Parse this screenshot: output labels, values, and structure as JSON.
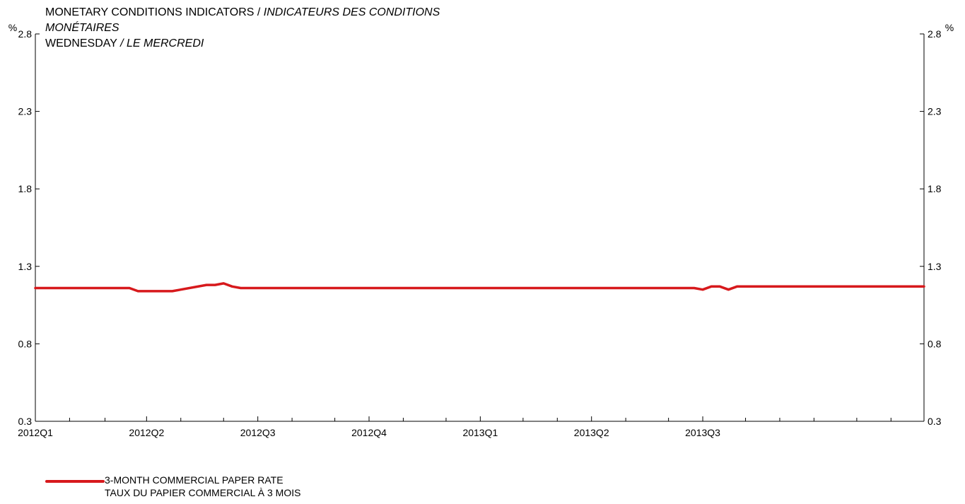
{
  "header": {
    "title_en": "MONETARY CONDITIONS INDICATORS / ",
    "title_fr": "INDICATEURS DES CONDITIONS",
    "title_fr_cont": "MONÉTAIRES",
    "subtitle_en": "WEDNESDAY ",
    "subtitle_fr": "/ LE MERCREDI"
  },
  "legend": {
    "label_en": "3-MONTH COMMERCIAL PAPER RATE",
    "label_fr": "TAUX DU PAPIER COMMERCIAL À 3 MOIS"
  },
  "colors": {
    "series": "#d7191c",
    "axis": "#000000"
  },
  "chart_data": {
    "type": "line",
    "title": "MONETARY CONDITIONS INDICATORS / INDICATEURS DES CONDITIONS MONÉTAIRES",
    "subtitle": "WEDNESDAY / LE MERCREDI",
    "xlabel": "",
    "ylabel": "%",
    "y2label": "%",
    "ylim": [
      0.3,
      2.8
    ],
    "yticks": [
      0.3,
      0.8,
      1.3,
      1.8,
      2.3,
      2.8
    ],
    "ytick_labels": [
      "0.3",
      "0.8",
      "1.3",
      "1.8",
      "2.3",
      "2.8"
    ],
    "xlim": [
      "2012-01-04",
      "2013-12-31"
    ],
    "x_labels": [
      {
        "date": "2012-01-04",
        "label": "2012Q1"
      },
      {
        "date": "2012-04-04",
        "label": "2012Q2"
      },
      {
        "date": "2012-07-04",
        "label": "2012Q3"
      },
      {
        "date": "2012-10-03",
        "label": "2012Q4"
      },
      {
        "date": "2013-01-02",
        "label": "2013Q1"
      },
      {
        "date": "2013-04-03",
        "label": "2013Q2"
      },
      {
        "date": "2013-07-03",
        "label": "2013Q3"
      }
    ],
    "x_minor_ticks": [
      "2012-02-01",
      "2012-03-01",
      "2012-05-02",
      "2012-06-06",
      "2012-08-01",
      "2012-09-05",
      "2012-10-31",
      "2012-12-05",
      "2013-02-06",
      "2013-03-06",
      "2013-05-01",
      "2013-06-05",
      "2013-08-07",
      "2013-09-04",
      "2013-10-02",
      "2013-11-06",
      "2013-12-04"
    ],
    "grid": false,
    "legend_position": "bottom-left",
    "series": [
      {
        "name": "3-MONTH COMMERCIAL PAPER RATE / TAUX DU PAPIER COMMERCIAL À 3 MOIS",
        "x": [
          "2012-01-04",
          "2012-03-21",
          "2012-03-28",
          "2012-04-25",
          "2012-05-23",
          "2012-05-30",
          "2012-06-06",
          "2012-06-13",
          "2012-06-20",
          "2012-06-27",
          "2013-06-26",
          "2013-07-03",
          "2013-07-10",
          "2013-07-17",
          "2013-07-24",
          "2013-07-31",
          "2013-12-31"
        ],
        "values": [
          1.16,
          1.16,
          1.14,
          1.14,
          1.18,
          1.18,
          1.19,
          1.17,
          1.16,
          1.16,
          1.16,
          1.15,
          1.17,
          1.17,
          1.15,
          1.17,
          1.17
        ]
      }
    ]
  }
}
